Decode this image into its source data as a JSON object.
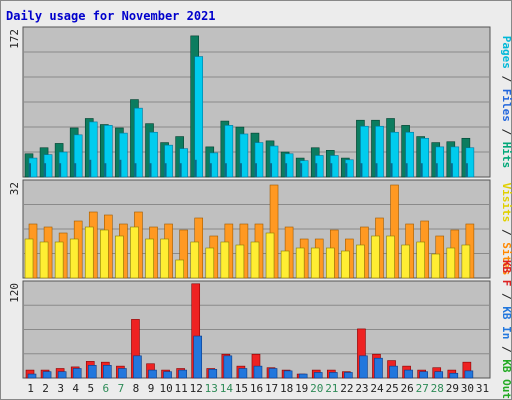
{
  "chart_data": {
    "type": "bar",
    "title": "Daily usage for November 2021",
    "categories": [
      "1",
      "2",
      "3",
      "4",
      "5",
      "6",
      "7",
      "8",
      "9",
      "10",
      "11",
      "12",
      "13",
      "14",
      "15",
      "16",
      "17",
      "18",
      "19",
      "20",
      "21",
      "22",
      "23",
      "24",
      "25",
      "26",
      "27",
      "28",
      "29",
      "30",
      "31"
    ],
    "weekend_days": [
      "6",
      "7",
      "13",
      "14",
      "20",
      "21",
      "27",
      "28"
    ],
    "colors": {
      "label_default": "#222222",
      "label_weekend": "#2e8b57",
      "pages": "#00a878",
      "pages_dark": "#006a4e",
      "files": "#00ccee",
      "hits": "#0c7c5f",
      "visits": "#ffee33",
      "sites": "#ff9922",
      "kb_in": "#2277dd",
      "kb_out": "#22aa22",
      "kb_f": "#ee2222",
      "title": "#0000cc"
    },
    "panels": [
      {
        "ymax_label": "172",
        "ylim": [
          0,
          172
        ],
        "side_labels": [
          {
            "text": "Pages",
            "color": "#00b8d8"
          },
          {
            "text": " / ",
            "color": "#222222"
          },
          {
            "text": "Files",
            "color": "#2266dd"
          },
          {
            "text": " / ",
            "color": "#222222"
          },
          {
            "text": "Hits",
            "color": "#00a878"
          }
        ],
        "series": [
          {
            "name": "Hits",
            "color": "#0c7c5f",
            "values": [
              27,
              34,
              39,
              57,
              68,
              61,
              57,
              90,
              62,
              40,
              47,
              164,
              35,
              65,
              58,
              51,
              42,
              29,
              22,
              34,
              31,
              22,
              66,
              66,
              68,
              60,
              47,
              40,
              41,
              45,
              null
            ]
          },
          {
            "name": "Files",
            "color": "#00ccee",
            "values": [
              22,
              26,
              29,
              49,
              64,
              60,
              51,
              80,
              52,
              37,
              33,
              140,
              28,
              60,
              50,
              40,
              36,
              27,
              19,
              25,
              25,
              20,
              59,
              59,
              52,
              52,
              45,
              35,
              35,
              34,
              null
            ]
          },
          {
            "name": "Pages",
            "color": "#0a6a8a",
            "values": [
              4,
              4,
              4,
              4,
              5,
              4,
              5,
              4,
              4,
              4,
              4,
              5,
              4,
              4,
              4,
              4,
              4,
              4,
              4,
              4,
              4,
              4,
              4,
              4,
              4,
              4,
              4,
              4,
              4,
              4,
              null
            ]
          }
        ]
      },
      {
        "ymax_label": "32",
        "ylim": [
          0,
          32
        ],
        "side_labels": [
          {
            "text": "Visits",
            "color": "#e0d000"
          },
          {
            "text": " / ",
            "color": "#222222"
          },
          {
            "text": "Sites",
            "color": "#ff8800"
          }
        ],
        "series": [
          {
            "name": "Sites",
            "color": "#ff9922",
            "values": [
              18,
              17,
              15,
              19,
              22,
              21,
              18,
              22,
              17,
              18,
              16,
              20,
              14,
              18,
              18,
              18,
              31,
              17,
              13,
              13,
              16,
              13,
              17,
              20,
              31,
              18,
              19,
              14,
              16,
              18,
              null
            ]
          },
          {
            "name": "Visits",
            "color": "#ffee33",
            "values": [
              13,
              12,
              12,
              13,
              17,
              16,
              14,
              17,
              13,
              13,
              6,
              12,
              10,
              12,
              11,
              12,
              15,
              9,
              10,
              10,
              10,
              9,
              11,
              14,
              14,
              11,
              12,
              8,
              10,
              11,
              null
            ]
          }
        ]
      },
      {
        "ymax_label": "120",
        "ylim": [
          0,
          120
        ],
        "side_labels": [
          {
            "text": "KB F",
            "color": "#dd2222"
          },
          {
            "text": " / ",
            "color": "#222222"
          },
          {
            "text": "KB In",
            "color": "#2277dd"
          },
          {
            "text": " / ",
            "color": "#222222"
          },
          {
            "text": "KB Out",
            "color": "#22aa22"
          }
        ],
        "series": [
          {
            "name": "KB F",
            "color": "#ee2222",
            "values": [
              10,
              10,
              12,
              14,
              21,
              20,
              15,
              74,
              18,
              10,
              12,
              119,
              12,
              30,
              15,
              30,
              13,
              10,
              5,
              10,
              10,
              8,
              62,
              30,
              22,
              15,
              10,
              13,
              10,
              20,
              null
            ]
          },
          {
            "name": "KB In",
            "color": "#2277dd",
            "values": [
              5,
              8,
              8,
              12,
              16,
              16,
              12,
              28,
              10,
              8,
              10,
              53,
              11,
              28,
              12,
              15,
              12,
              9,
              5,
              7,
              7,
              7,
              28,
              25,
              15,
              10,
              8,
              8,
              6,
              9,
              null
            ]
          }
        ]
      }
    ]
  }
}
